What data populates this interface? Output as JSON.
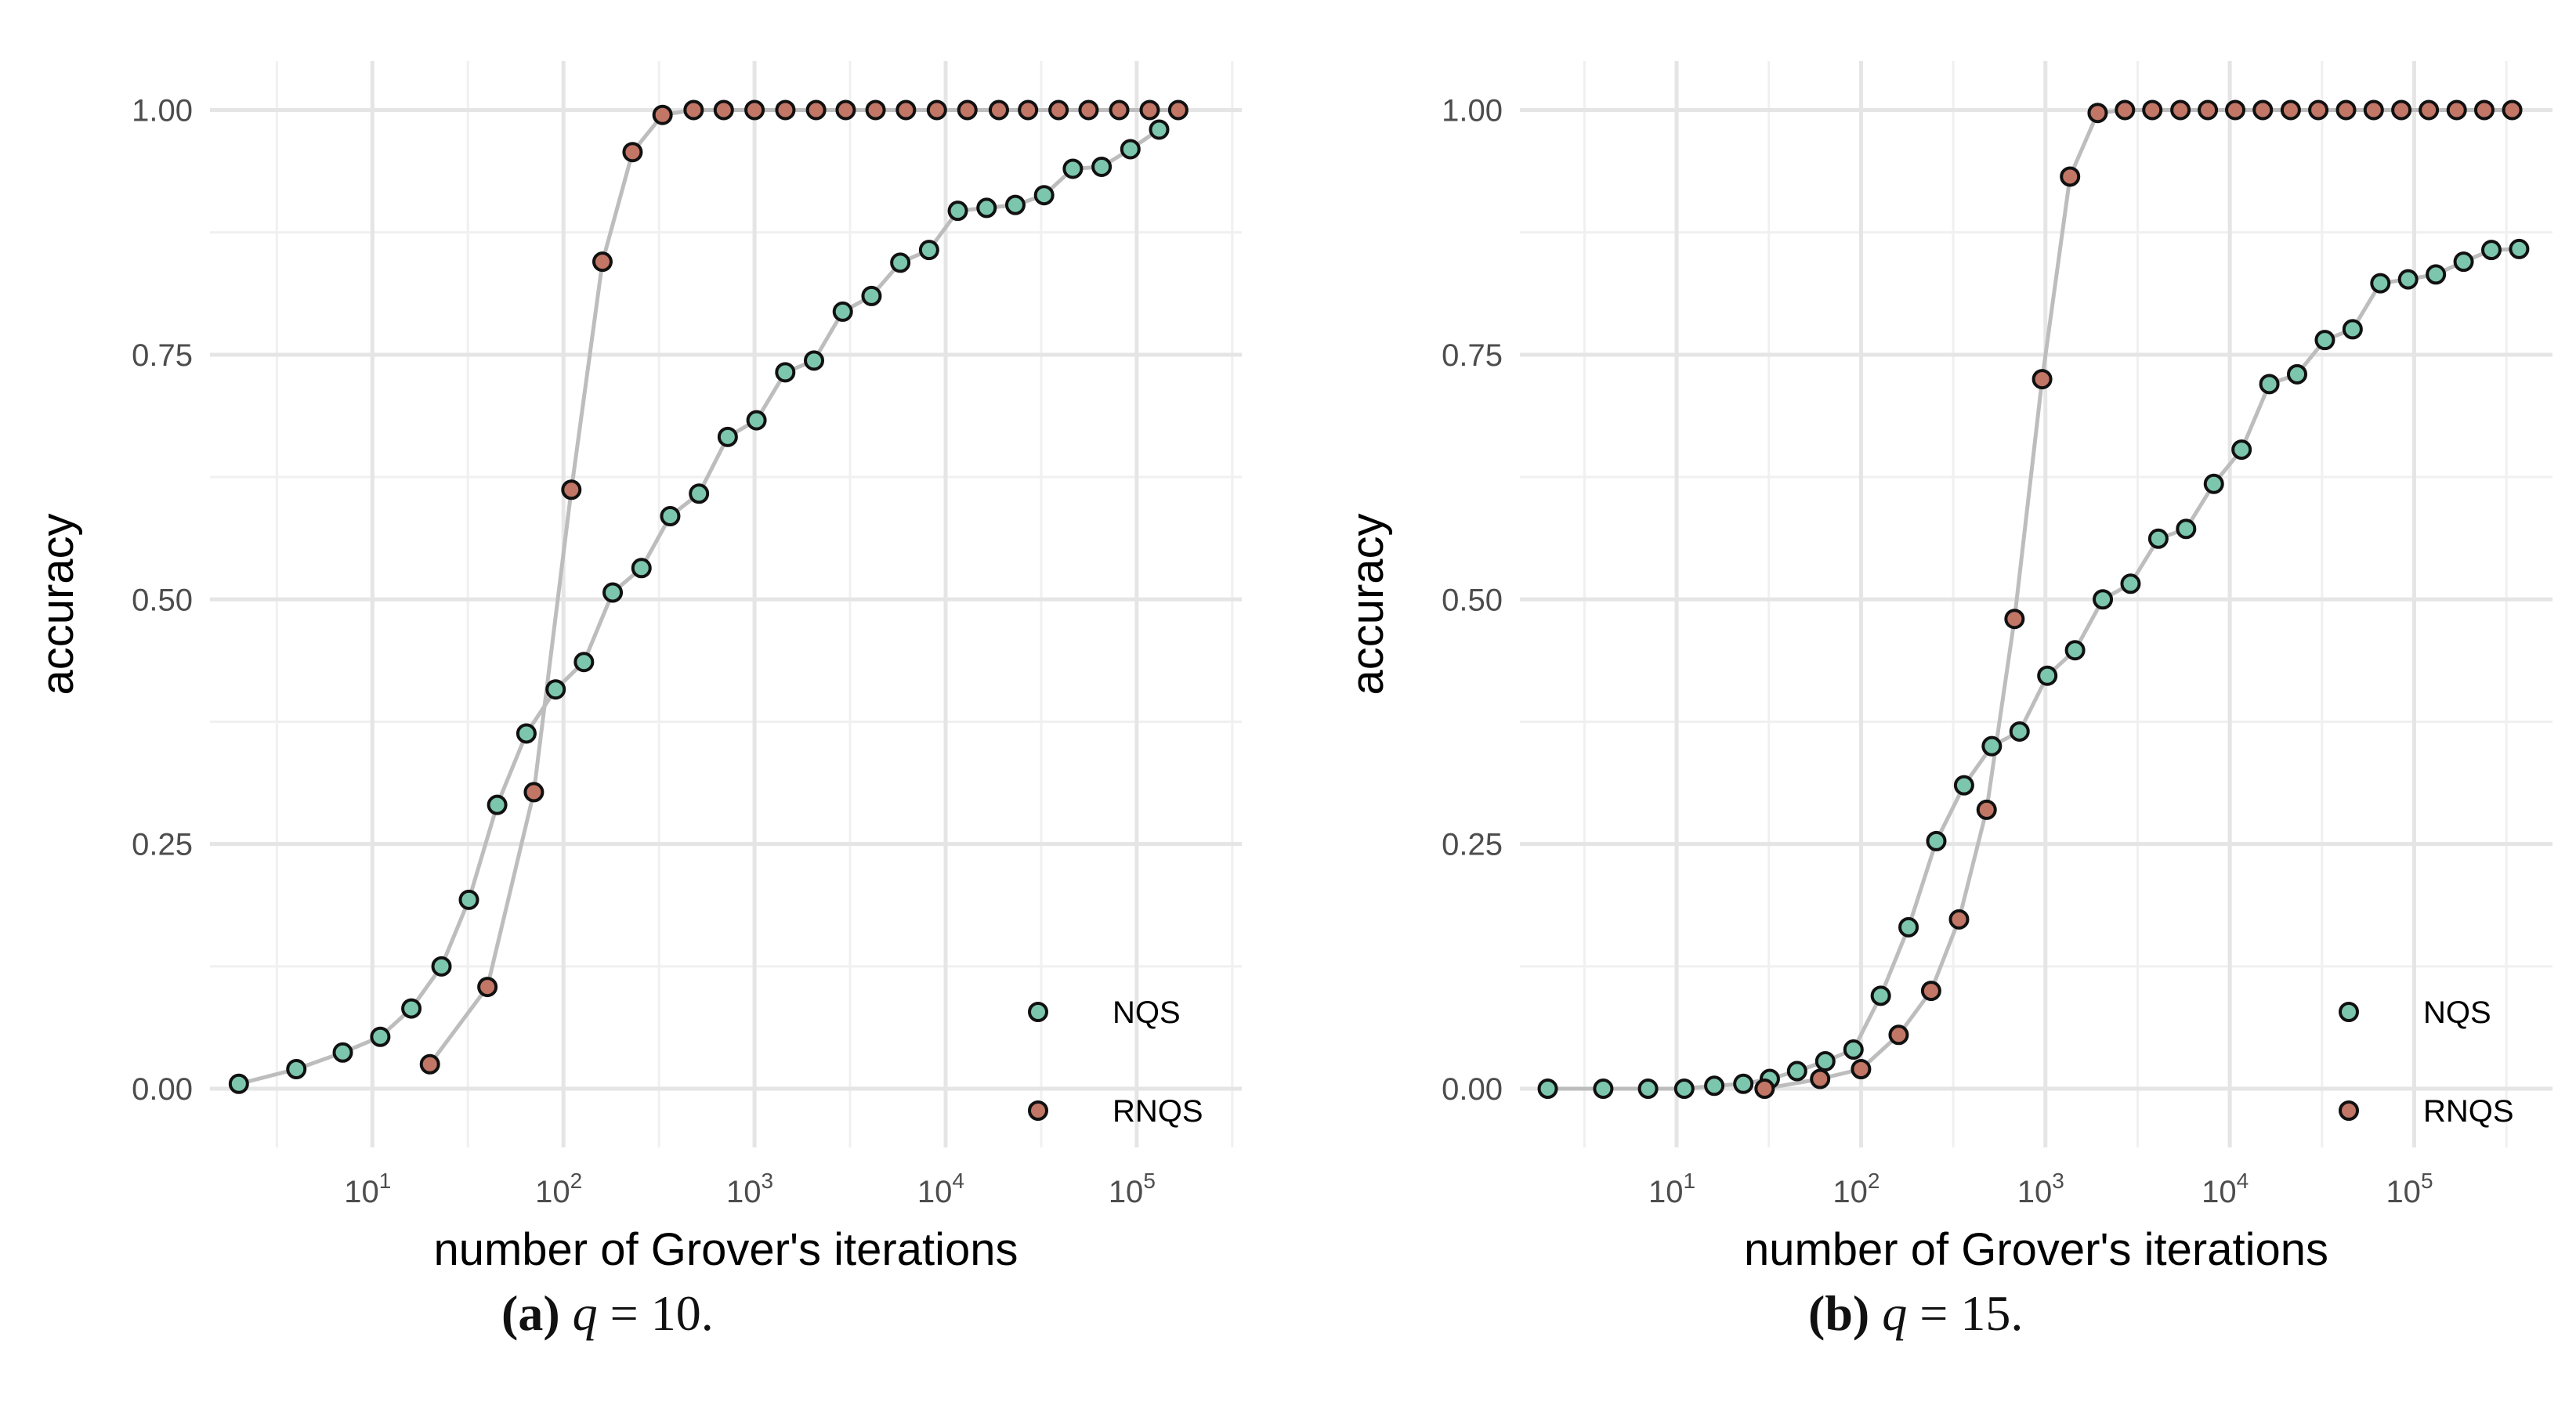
{
  "figure": {
    "captions": [
      {
        "label": "(a)",
        "text": "q = 10.",
        "var": "q",
        "eq": " = 10."
      },
      {
        "label": "(b)",
        "text": "q = 15.",
        "var": "q",
        "eq": " = 15."
      }
    ]
  },
  "colors": {
    "nqs": "#7cc6ad",
    "rnqs": "#c27666",
    "line": "#bdbdbd",
    "grid_major": "#e5e5e5",
    "grid_minor": "#f0f0f0",
    "text": "#4d4d4d",
    "title": "#000000"
  },
  "chart_data": [
    {
      "type": "scatter",
      "panel": "a",
      "title": "",
      "xlabel": "number of Grover's iterations",
      "ylabel": "accuracy",
      "x_scale": "log10",
      "xlim_log10": [
        0.15,
        5.55
      ],
      "ylim": [
        -0.06,
        1.05
      ],
      "x_ticks": [
        {
          "exp": 1,
          "base": "10",
          "sup": "1"
        },
        {
          "exp": 2,
          "base": "10",
          "sup": "2"
        },
        {
          "exp": 3,
          "base": "10",
          "sup": "3"
        },
        {
          "exp": 4,
          "base": "10",
          "sup": "4"
        },
        {
          "exp": 5,
          "base": "10",
          "sup": "5"
        }
      ],
      "y_ticks": [
        {
          "value": 0,
          "label": "0.00"
        },
        {
          "value": 0.25,
          "label": "0.25"
        },
        {
          "value": 0.5,
          "label": "0.50"
        },
        {
          "value": 0.75,
          "label": "0.75"
        },
        {
          "value": 1.0,
          "label": "1.00"
        }
      ],
      "legend": {
        "position": "bottom-right",
        "entries": [
          "NQS",
          "RNQS"
        ]
      },
      "series": [
        {
          "name": "NQS",
          "x": [
            2,
            4,
            7,
            11,
            16,
            23,
            32,
            45,
            64,
            91,
            128,
            181,
            256,
            362,
            512,
            724,
            1024,
            1448,
            2048,
            2896,
            4096,
            5793,
            8192,
            11585,
            16384,
            23170,
            32768,
            46341,
            65536,
            92682,
            131072
          ],
          "y": [
            0.005,
            0.02,
            0.037,
            0.053,
            0.082,
            0.125,
            0.193,
            0.29,
            0.363,
            0.408,
            0.436,
            0.507,
            0.532,
            0.585,
            0.608,
            0.666,
            0.683,
            0.732,
            0.744,
            0.794,
            0.81,
            0.844,
            0.857,
            0.897,
            0.9,
            0.903,
            0.913,
            0.94,
            0.942,
            0.96,
            0.98
          ]
        },
        {
          "name": "RNQS",
          "x": [
            20,
            40,
            70,
            110,
            160,
            230,
            330,
            480,
            690,
            1000,
            1450,
            2100,
            3000,
            4300,
            6200,
            9000,
            13000,
            19000,
            27000,
            39000,
            56000,
            81000,
            117000,
            165000
          ],
          "y": [
            0.025,
            0.104,
            0.303,
            0.612,
            0.845,
            0.957,
            0.995,
            1,
            1,
            1,
            1,
            1,
            1,
            1,
            1,
            1,
            1,
            1,
            1,
            1,
            1,
            1,
            1,
            1
          ]
        }
      ]
    },
    {
      "type": "scatter",
      "panel": "b",
      "title": "",
      "xlabel": "number of Grover's iterations",
      "ylabel": "accuracy",
      "x_scale": "log10",
      "xlim_log10": [
        0.15,
        5.75
      ],
      "ylim": [
        -0.06,
        1.05
      ],
      "x_ticks": [
        {
          "exp": 1,
          "base": "10",
          "sup": "1"
        },
        {
          "exp": 2,
          "base": "10",
          "sup": "2"
        },
        {
          "exp": 3,
          "base": "10",
          "sup": "3"
        },
        {
          "exp": 4,
          "base": "10",
          "sup": "4"
        },
        {
          "exp": 5,
          "base": "10",
          "sup": "5"
        }
      ],
      "y_ticks": [
        {
          "value": 0,
          "label": "0.00"
        },
        {
          "value": 0.25,
          "label": "0.25"
        },
        {
          "value": 0.5,
          "label": "0.50"
        },
        {
          "value": 0.75,
          "label": "0.75"
        },
        {
          "value": 1.0,
          "label": "1.00"
        }
      ],
      "legend": {
        "position": "bottom-right",
        "entries": [
          "NQS",
          "RNQS"
        ]
      },
      "series": [
        {
          "name": "NQS",
          "x": [
            2,
            4,
            7,
            11,
            16,
            23,
            32,
            45,
            64,
            91,
            128,
            181,
            256,
            362,
            512,
            724,
            1024,
            1448,
            2048,
            2896,
            4096,
            5793,
            8192,
            11585,
            16384,
            23170,
            32768,
            46341,
            65536,
            92682,
            131072,
            185364,
            262144,
            370728
          ],
          "y": [
            0,
            0,
            0,
            0,
            0.003,
            0.005,
            0.01,
            0.018,
            0.028,
            0.04,
            0.095,
            0.165,
            0.253,
            0.31,
            0.35,
            0.365,
            0.422,
            0.448,
            0.5,
            0.516,
            0.562,
            0.572,
            0.618,
            0.653,
            0.72,
            0.73,
            0.765,
            0.776,
            0.823,
            0.827,
            0.832,
            0.845,
            0.857,
            0.858
          ]
        },
        {
          "name": "RNQS",
          "x": [
            30,
            60,
            100,
            160,
            240,
            340,
            480,
            680,
            960,
            1360,
            1920,
            2700,
            3800,
            5400,
            7600,
            10700,
            15100,
            21400,
            30200,
            42700,
            60300,
            85200,
            120000,
            170000,
            240000,
            340000
          ],
          "y": [
            0,
            0.01,
            0.02,
            0.055,
            0.1,
            0.173,
            0.285,
            0.48,
            0.725,
            0.932,
            0.997,
            1,
            1,
            1,
            1,
            1,
            1,
            1,
            1,
            1,
            1,
            1,
            1,
            1,
            1,
            1
          ]
        }
      ]
    }
  ]
}
